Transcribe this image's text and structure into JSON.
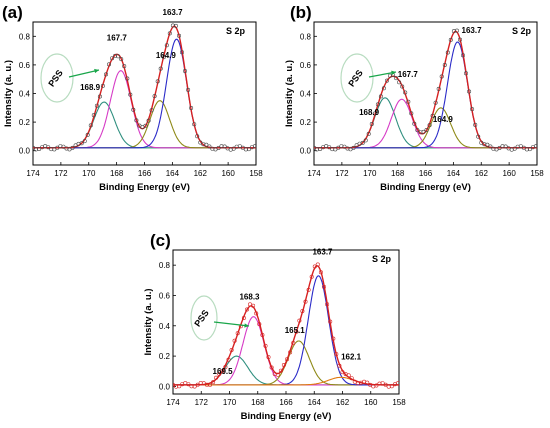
{
  "chart_data": [
    {
      "panel": "(a)",
      "type": "line",
      "region": "S 2p",
      "xlabel": "Binding Energy (eV)",
      "ylabel": "Intensity (a. u.)",
      "xlim": [
        174,
        158
      ],
      "ylim": [
        -0.1,
        0.9
      ],
      "xticks": [
        "174",
        "172",
        "170",
        "168",
        "166",
        "164",
        "162",
        "160",
        "158"
      ],
      "yticks": [
        "0.0",
        "0.2",
        "0.4",
        "0.6",
        "0.8"
      ],
      "annotations": {
        "pss": "PSS",
        "peaks": [
          {
            "text": "168.9",
            "x": 168.9,
            "y": 0.34
          },
          {
            "text": "167.7",
            "x": 167.7,
            "y": 0.7
          },
          {
            "text": "164.9",
            "x": 164.9,
            "y": 0.55
          },
          {
            "text": "163.7",
            "x": 163.7,
            "y": 0.88
          }
        ]
      },
      "baseline": 0.02,
      "components": [
        {
          "center": 168.9,
          "amp": 0.32,
          "width": 0.75,
          "color": "#2f8f7f"
        },
        {
          "center": 167.7,
          "amp": 0.54,
          "width": 0.75,
          "color": "#d63bc6"
        },
        {
          "center": 164.9,
          "amp": 0.33,
          "width": 0.7,
          "color": "#8f8a18"
        },
        {
          "center": 163.7,
          "amp": 0.76,
          "width": 0.72,
          "color": "#2a2ac8"
        }
      ],
      "envelope_color": "#d62020",
      "raw_color": "#444444"
    },
    {
      "panel": "(b)",
      "type": "line",
      "region": "S 2p",
      "xlabel": "Binding Energy (eV)",
      "ylabel": "Intensity (a. u.)",
      "xlim": [
        174,
        158
      ],
      "ylim": [
        -0.1,
        0.9
      ],
      "xticks": [
        "174",
        "172",
        "170",
        "168",
        "166",
        "164",
        "162",
        "160",
        "158"
      ],
      "yticks": [
        "0.0",
        "0.2",
        "0.4",
        "0.6",
        "0.8"
      ],
      "annotations": {
        "pss": "PSS",
        "peaks": [
          {
            "text": "168.9",
            "x": 168.9,
            "y": 0.36
          },
          {
            "text": "167.7",
            "x": 167.7,
            "y": 0.57
          },
          {
            "text": "164.9",
            "x": 164.9,
            "y": 0.3
          },
          {
            "text": "163.7",
            "x": 163.7,
            "y": 0.88
          }
        ]
      },
      "baseline": 0.02,
      "components": [
        {
          "center": 168.9,
          "amp": 0.35,
          "width": 0.75,
          "color": "#2f8f7f"
        },
        {
          "center": 167.7,
          "amp": 0.34,
          "width": 0.75,
          "color": "#d63bc6"
        },
        {
          "center": 164.9,
          "amp": 0.28,
          "width": 0.7,
          "color": "#8f8a18"
        },
        {
          "center": 163.7,
          "amp": 0.74,
          "width": 0.72,
          "color": "#2a2ac8"
        }
      ],
      "envelope_color": "#d62020",
      "raw_color": "#444444"
    },
    {
      "panel": "(c)",
      "type": "line",
      "region": "S 2p",
      "xlabel": "Binding Energy (eV)",
      "ylabel": "Intensity (a. u.)",
      "xlim": [
        174,
        158
      ],
      "ylim": [
        -0.05,
        0.9
      ],
      "xticks": [
        "174",
        "172",
        "170",
        "168",
        "166",
        "164",
        "162",
        "160",
        "158"
      ],
      "yticks": [
        "0.0",
        "0.2",
        "0.4",
        "0.6",
        "0.8"
      ],
      "annotations": {
        "pss": "PSS",
        "peaks": [
          {
            "text": "169.5",
            "x": 169.5,
            "y": 0.2
          },
          {
            "text": "168.3",
            "x": 168.3,
            "y": 0.52
          },
          {
            "text": "165.1",
            "x": 165.1,
            "y": 0.3
          },
          {
            "text": "163.7",
            "x": 163.7,
            "y": 0.83
          },
          {
            "text": "162.1",
            "x": 162.1,
            "y": 0.15
          }
        ]
      },
      "baseline": 0.01,
      "components": [
        {
          "center": 169.5,
          "amp": 0.19,
          "width": 0.8,
          "color": "#2f8f7f"
        },
        {
          "center": 168.3,
          "amp": 0.45,
          "width": 0.75,
          "color": "#d63bc6"
        },
        {
          "center": 165.1,
          "amp": 0.29,
          "width": 0.75,
          "color": "#8f8a18"
        },
        {
          "center": 163.7,
          "amp": 0.72,
          "width": 0.72,
          "color": "#2a2ac8"
        },
        {
          "center": 162.1,
          "amp": 0.05,
          "width": 0.9,
          "color": "#e07a10"
        }
      ],
      "envelope_color": "#d62020",
      "raw_color": "#d62020"
    }
  ],
  "colors": {
    "pss_ellipse": "#b8dcc0",
    "pss_arrow": "#19a64a",
    "axis": "#000000"
  }
}
